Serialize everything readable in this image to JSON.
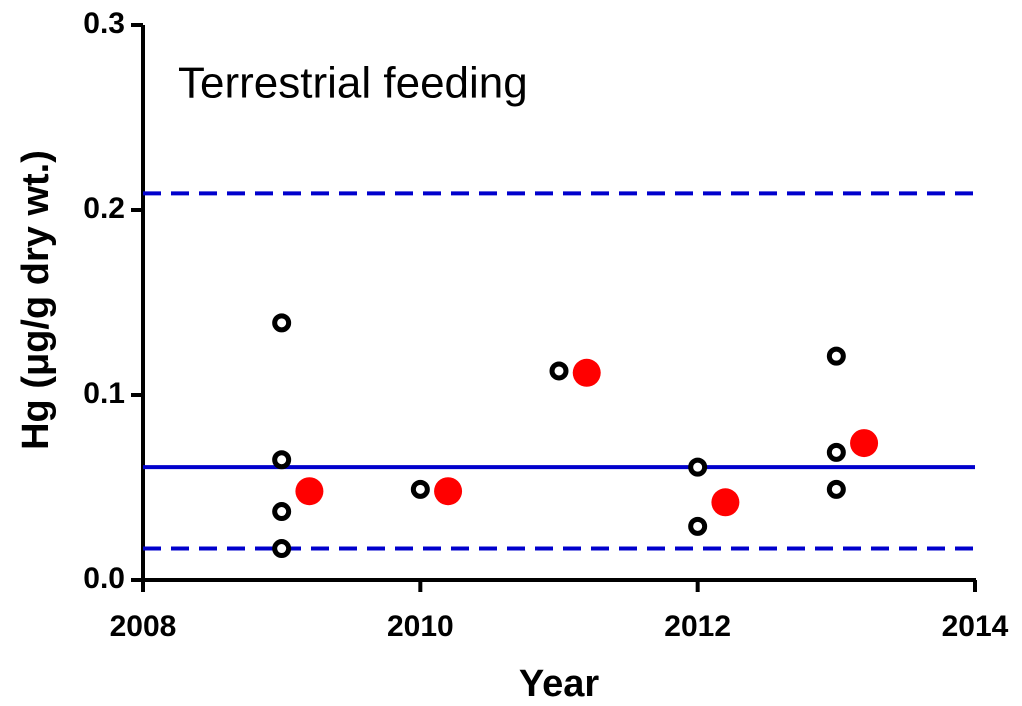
{
  "chart_data": {
    "type": "scatter",
    "annotation": "Terrestrial feeding",
    "x_label": "Year",
    "y_label": "Hg (μg/g dry wt.)",
    "xlim": [
      2008,
      2014
    ],
    "xticks": [
      2008,
      2010,
      2012,
      2014
    ],
    "ylim": [
      0,
      0.3
    ],
    "yticks": [
      {
        "value": 0,
        "label": "0.0"
      },
      {
        "value": 0.1,
        "label": "0.1"
      },
      {
        "value": 0.2,
        "label": "0.2"
      },
      {
        "value": 0.3,
        "label": "0.3"
      }
    ],
    "series": [
      {
        "color": "#000000",
        "marker": "open",
        "x": [
          2009,
          2009,
          2009,
          2009,
          2010,
          2011,
          2012,
          2012,
          2013,
          2013,
          2013
        ],
        "values": [
          0.139,
          0.065,
          0.037,
          0.017,
          0.049,
          0.113,
          0.061,
          0.029,
          0.121,
          0.069,
          0.049
        ]
      },
      {
        "color": "#ff0000",
        "marker": "filled",
        "x": [
          2009.2,
          2010.2,
          2011.2,
          2012.2,
          2013.2
        ],
        "values": [
          0.048,
          0.048,
          0.112,
          0.042,
          0.074
        ]
      }
    ],
    "hlines": [
      {
        "value": 0.061,
        "style": "solid",
        "color": "#0000cc"
      },
      {
        "value": 0.209,
        "style": "dashed",
        "color": "#0000cc"
      },
      {
        "value": 0.017,
        "style": "dashed",
        "color": "#0000cc"
      }
    ]
  }
}
